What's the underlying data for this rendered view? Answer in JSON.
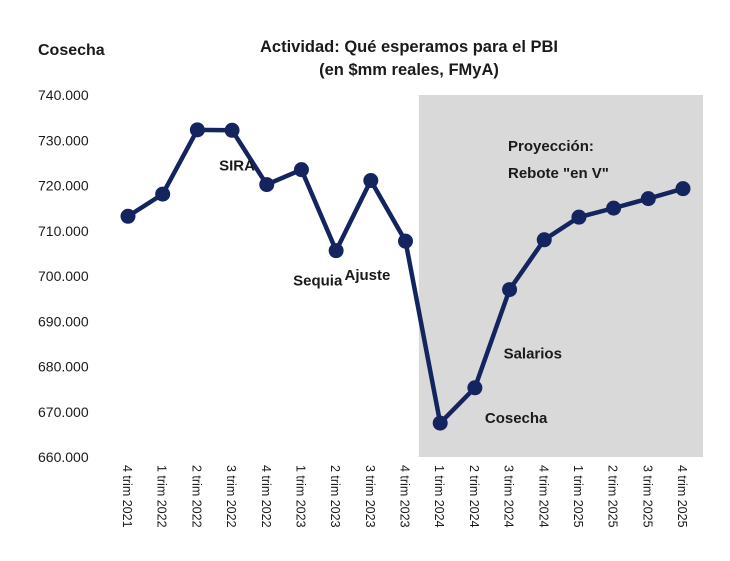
{
  "chart_data": {
    "type": "line",
    "title": "Actividad: Qué esperamos para el PBI",
    "subtitle": "(en $mm reales, FMyA)",
    "corner_label": "Cosecha",
    "ylim": [
      660000,
      740000
    ],
    "yticks": [
      660000,
      670000,
      680000,
      690000,
      700000,
      710000,
      720000,
      730000,
      740000
    ],
    "ytick_labels": [
      "660.000",
      "670.000",
      "680.000",
      "690.000",
      "700.000",
      "710.000",
      "720.000",
      "730.000",
      "740.000"
    ],
    "categories": [
      "4 trim 2021",
      "1 trim 2022",
      "2 trim 2022",
      "3 trim 2022",
      "4 trim 2022",
      "1 trim 2023",
      "2 trim 2023",
      "3 trim 2023",
      "4 trim 2023",
      "1 trim 2024",
      "2 trim 2024",
      "3 trim 2024",
      "4 trim 2024",
      "1 trim 2025",
      "2 trim 2025",
      "3 trim 2025",
      "4 trim 2025"
    ],
    "series": [
      {
        "name": "PBI",
        "values": [
          713200,
          718100,
          732300,
          732200,
          720200,
          723500,
          705600,
          721100,
          707700,
          667500,
          675300,
          697000,
          708000,
          713000,
          715000,
          717100,
          719300
        ]
      }
    ],
    "projection_start_index": 9,
    "annotations": [
      {
        "text": "SIRA",
        "index": 3
      },
      {
        "text": "Sequia",
        "index": 6
      },
      {
        "text": "Ajuste",
        "index": 8
      },
      {
        "text": "Cosecha",
        "index": 10
      },
      {
        "text": "Salarios",
        "index": 11
      }
    ],
    "projection_label": [
      "Proyección:",
      "Rebote \"en V\""
    ],
    "colors": {
      "line": "#14245e",
      "shade": "#d9d9d9",
      "text": "#1a1a1a"
    }
  }
}
